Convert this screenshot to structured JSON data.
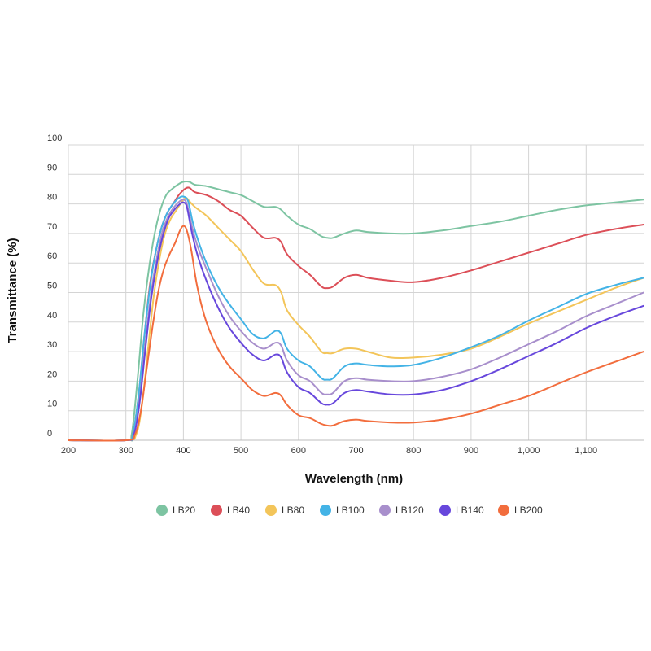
{
  "chart_data": {
    "type": "line",
    "xlabel": "Wavelength (nm)",
    "ylabel": "Transmittance (%)",
    "xlim": [
      200,
      1200
    ],
    "ylim": [
      0,
      100
    ],
    "x_ticks": [
      200,
      300,
      400,
      500,
      600,
      700,
      800,
      900,
      1000,
      1100
    ],
    "x_tick_labels": [
      "200",
      "300",
      "400",
      "500",
      "600",
      "700",
      "800",
      "900",
      "1,000",
      "1,100"
    ],
    "y_ticks": [
      0,
      10,
      20,
      30,
      40,
      50,
      60,
      70,
      80,
      90,
      100
    ],
    "y_tick_labels": [
      "0",
      "10",
      "20",
      "30",
      "40",
      "50",
      "60",
      "70",
      "80",
      "90",
      "100"
    ],
    "grid": true,
    "legend_position": "bottom",
    "series": [
      {
        "name": "LB20",
        "color": "#7dc4a2",
        "points": [
          [
            200,
            0
          ],
          [
            300,
            0
          ],
          [
            310,
            2
          ],
          [
            320,
            20
          ],
          [
            330,
            42
          ],
          [
            340,
            58
          ],
          [
            350,
            70
          ],
          [
            360,
            78
          ],
          [
            370,
            83
          ],
          [
            380,
            85
          ],
          [
            390,
            86.5
          ],
          [
            400,
            87.5
          ],
          [
            410,
            87.5
          ],
          [
            420,
            86.5
          ],
          [
            440,
            86
          ],
          [
            460,
            85
          ],
          [
            480,
            84
          ],
          [
            500,
            83
          ],
          [
            520,
            81
          ],
          [
            540,
            79
          ],
          [
            560,
            79
          ],
          [
            570,
            78
          ],
          [
            580,
            76
          ],
          [
            600,
            73
          ],
          [
            620,
            71.5
          ],
          [
            640,
            69
          ],
          [
            650,
            68.5
          ],
          [
            660,
            68.5
          ],
          [
            680,
            70
          ],
          [
            700,
            71
          ],
          [
            720,
            70.5
          ],
          [
            760,
            70
          ],
          [
            800,
            70
          ],
          [
            850,
            71
          ],
          [
            900,
            72.5
          ],
          [
            950,
            74
          ],
          [
            1000,
            76
          ],
          [
            1050,
            78
          ],
          [
            1100,
            79.5
          ],
          [
            1150,
            80.5
          ],
          [
            1200,
            81.5
          ]
        ]
      },
      {
        "name": "LB40",
        "color": "#dc4f58",
        "points": [
          [
            200,
            0
          ],
          [
            300,
            0
          ],
          [
            312,
            2
          ],
          [
            322,
            15
          ],
          [
            332,
            35
          ],
          [
            342,
            53
          ],
          [
            352,
            64
          ],
          [
            362,
            72
          ],
          [
            372,
            77
          ],
          [
            382,
            80
          ],
          [
            392,
            83
          ],
          [
            402,
            85
          ],
          [
            410,
            85.5
          ],
          [
            420,
            84
          ],
          [
            440,
            83
          ],
          [
            460,
            81
          ],
          [
            480,
            78
          ],
          [
            500,
            76
          ],
          [
            520,
            72
          ],
          [
            540,
            68.5
          ],
          [
            560,
            68.5
          ],
          [
            570,
            67
          ],
          [
            580,
            63
          ],
          [
            600,
            59
          ],
          [
            620,
            56
          ],
          [
            640,
            52
          ],
          [
            650,
            51.5
          ],
          [
            660,
            52
          ],
          [
            680,
            55
          ],
          [
            700,
            56
          ],
          [
            720,
            55
          ],
          [
            760,
            54
          ],
          [
            800,
            53.5
          ],
          [
            850,
            55
          ],
          [
            900,
            57.5
          ],
          [
            950,
            60.5
          ],
          [
            1000,
            63.5
          ],
          [
            1050,
            66.5
          ],
          [
            1100,
            69.5
          ],
          [
            1150,
            71.5
          ],
          [
            1200,
            73
          ]
        ]
      },
      {
        "name": "LB80",
        "color": "#f3c55a",
        "points": [
          [
            200,
            0
          ],
          [
            300,
            0
          ],
          [
            318,
            2
          ],
          [
            328,
            12
          ],
          [
            338,
            30
          ],
          [
            348,
            48
          ],
          [
            358,
            61
          ],
          [
            368,
            70
          ],
          [
            378,
            75
          ],
          [
            388,
            78
          ],
          [
            398,
            81
          ],
          [
            405,
            82
          ],
          [
            410,
            81
          ],
          [
            420,
            79
          ],
          [
            440,
            76
          ],
          [
            460,
            72
          ],
          [
            480,
            68
          ],
          [
            500,
            64
          ],
          [
            520,
            58
          ],
          [
            540,
            53
          ],
          [
            560,
            52.5
          ],
          [
            570,
            50
          ],
          [
            580,
            44
          ],
          [
            600,
            39
          ],
          [
            620,
            35
          ],
          [
            640,
            30
          ],
          [
            650,
            29.5
          ],
          [
            660,
            29.5
          ],
          [
            680,
            31
          ],
          [
            700,
            31
          ],
          [
            720,
            30
          ],
          [
            760,
            28
          ],
          [
            800,
            28
          ],
          [
            850,
            29
          ],
          [
            900,
            31
          ],
          [
            950,
            35
          ],
          [
            1000,
            39.5
          ],
          [
            1050,
            43.5
          ],
          [
            1100,
            47.5
          ],
          [
            1150,
            51.5
          ],
          [
            1200,
            55
          ]
        ]
      },
      {
        "name": "LB100",
        "color": "#43b3e6",
        "points": [
          [
            200,
            0
          ],
          [
            300,
            0
          ],
          [
            312,
            2
          ],
          [
            322,
            15
          ],
          [
            332,
            35
          ],
          [
            342,
            52
          ],
          [
            352,
            64
          ],
          [
            362,
            72
          ],
          [
            372,
            77
          ],
          [
            382,
            80
          ],
          [
            392,
            82
          ],
          [
            400,
            82.5
          ],
          [
            408,
            81
          ],
          [
            416,
            74
          ],
          [
            425,
            68
          ],
          [
            440,
            60
          ],
          [
            460,
            52
          ],
          [
            480,
            46
          ],
          [
            500,
            41
          ],
          [
            520,
            36
          ],
          [
            540,
            34.5
          ],
          [
            560,
            37
          ],
          [
            570,
            36
          ],
          [
            580,
            31
          ],
          [
            600,
            27
          ],
          [
            620,
            25
          ],
          [
            640,
            21
          ],
          [
            650,
            20.5
          ],
          [
            660,
            21
          ],
          [
            680,
            25
          ],
          [
            700,
            26
          ],
          [
            720,
            25.5
          ],
          [
            760,
            25
          ],
          [
            800,
            25.5
          ],
          [
            850,
            28
          ],
          [
            900,
            31.5
          ],
          [
            950,
            35.5
          ],
          [
            1000,
            40.5
          ],
          [
            1050,
            45
          ],
          [
            1100,
            49.5
          ],
          [
            1150,
            52.5
          ],
          [
            1200,
            55
          ]
        ]
      },
      {
        "name": "LB120",
        "color": "#a88fcc",
        "points": [
          [
            200,
            0
          ],
          [
            300,
            0
          ],
          [
            314,
            2
          ],
          [
            324,
            14
          ],
          [
            334,
            33
          ],
          [
            344,
            50
          ],
          [
            354,
            62
          ],
          [
            364,
            71
          ],
          [
            374,
            76
          ],
          [
            384,
            79
          ],
          [
            394,
            81
          ],
          [
            400,
            81.5
          ],
          [
            406,
            80
          ],
          [
            414,
            73
          ],
          [
            424,
            66
          ],
          [
            440,
            58
          ],
          [
            460,
            49
          ],
          [
            480,
            42
          ],
          [
            500,
            37
          ],
          [
            520,
            33
          ],
          [
            540,
            31
          ],
          [
            560,
            33
          ],
          [
            570,
            32
          ],
          [
            580,
            27
          ],
          [
            600,
            22
          ],
          [
            620,
            20
          ],
          [
            640,
            16
          ],
          [
            650,
            15.5
          ],
          [
            660,
            16
          ],
          [
            680,
            20
          ],
          [
            700,
            21
          ],
          [
            720,
            20.5
          ],
          [
            760,
            20
          ],
          [
            800,
            20
          ],
          [
            850,
            21.5
          ],
          [
            900,
            24
          ],
          [
            950,
            28
          ],
          [
            1000,
            32.5
          ],
          [
            1050,
            37
          ],
          [
            1100,
            42
          ],
          [
            1150,
            46
          ],
          [
            1200,
            50
          ]
        ]
      },
      {
        "name": "LB140",
        "color": "#6747dc",
        "points": [
          [
            200,
            0
          ],
          [
            300,
            0
          ],
          [
            314,
            2
          ],
          [
            324,
            13
          ],
          [
            334,
            31
          ],
          [
            344,
            48
          ],
          [
            354,
            60
          ],
          [
            364,
            69
          ],
          [
            374,
            75
          ],
          [
            384,
            78
          ],
          [
            394,
            80
          ],
          [
            400,
            80.5
          ],
          [
            406,
            79
          ],
          [
            414,
            71
          ],
          [
            424,
            63
          ],
          [
            440,
            54
          ],
          [
            460,
            45
          ],
          [
            480,
            38
          ],
          [
            500,
            33
          ],
          [
            520,
            29
          ],
          [
            540,
            27
          ],
          [
            560,
            29
          ],
          [
            570,
            28
          ],
          [
            580,
            23
          ],
          [
            600,
            18
          ],
          [
            620,
            16
          ],
          [
            640,
            12.5
          ],
          [
            650,
            12
          ],
          [
            660,
            12.5
          ],
          [
            680,
            16
          ],
          [
            700,
            17
          ],
          [
            720,
            16.5
          ],
          [
            760,
            15.5
          ],
          [
            800,
            15.5
          ],
          [
            850,
            17
          ],
          [
            900,
            20
          ],
          [
            950,
            24
          ],
          [
            1000,
            28.5
          ],
          [
            1050,
            33
          ],
          [
            1100,
            38
          ],
          [
            1150,
            42
          ],
          [
            1200,
            45.5
          ]
        ]
      },
      {
        "name": "LB200",
        "color": "#f26d3d",
        "points": [
          [
            200,
            0
          ],
          [
            300,
            0
          ],
          [
            316,
            2
          ],
          [
            326,
            10
          ],
          [
            336,
            24
          ],
          [
            346,
            38
          ],
          [
            356,
            50
          ],
          [
            366,
            58
          ],
          [
            376,
            63
          ],
          [
            386,
            67
          ],
          [
            394,
            71
          ],
          [
            400,
            72.5
          ],
          [
            406,
            71
          ],
          [
            414,
            64
          ],
          [
            424,
            52
          ],
          [
            440,
            40
          ],
          [
            460,
            31
          ],
          [
            480,
            25
          ],
          [
            500,
            21
          ],
          [
            520,
            17
          ],
          [
            540,
            15
          ],
          [
            560,
            16
          ],
          [
            570,
            15
          ],
          [
            580,
            12
          ],
          [
            600,
            8.5
          ],
          [
            620,
            7.5
          ],
          [
            640,
            5.5
          ],
          [
            650,
            5
          ],
          [
            660,
            5
          ],
          [
            680,
            6.5
          ],
          [
            700,
            7
          ],
          [
            720,
            6.5
          ],
          [
            760,
            6
          ],
          [
            800,
            6
          ],
          [
            850,
            7
          ],
          [
            900,
            9
          ],
          [
            950,
            12
          ],
          [
            1000,
            15
          ],
          [
            1050,
            19
          ],
          [
            1100,
            23
          ],
          [
            1150,
            26.5
          ],
          [
            1200,
            30
          ]
        ]
      }
    ]
  }
}
